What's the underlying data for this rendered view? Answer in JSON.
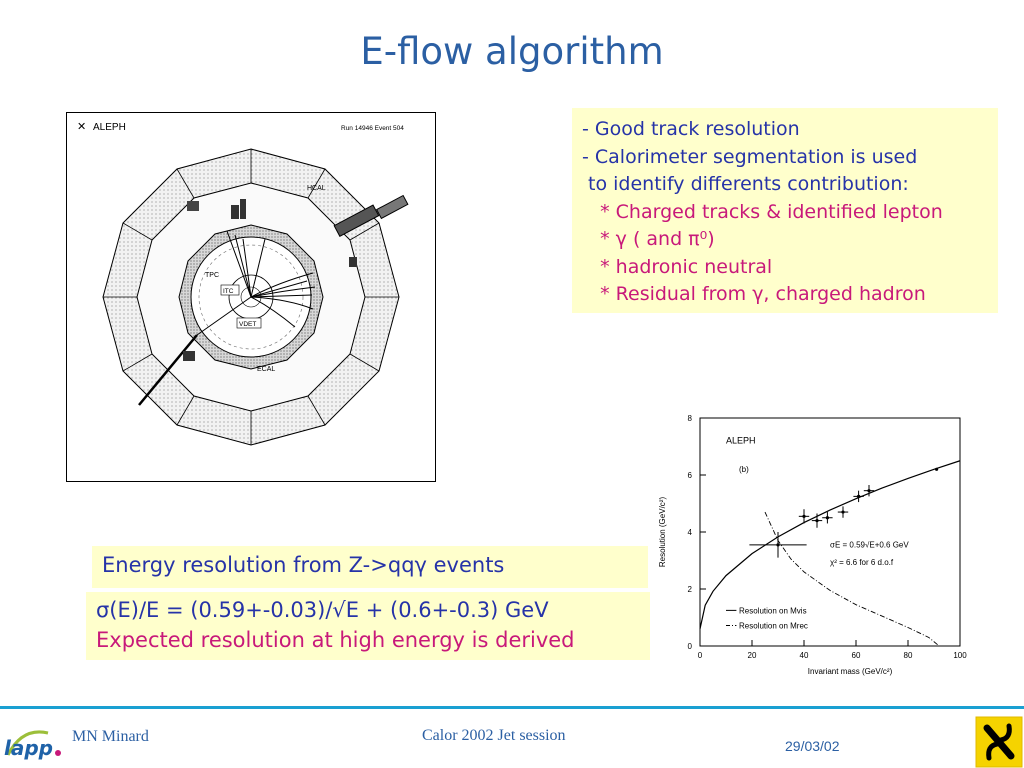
{
  "slide": {
    "title": "E-flow algorithm"
  },
  "detector": {
    "experiment": "ALEPH",
    "run_event": "Run 14946 Event 504",
    "labels": {
      "hcal": "HCAL",
      "tpc": "TPC",
      "itc": "ITC",
      "vdet": "VDET",
      "ecal": "ECAL"
    }
  },
  "bullets": [
    {
      "text": "- Good track resolution",
      "color": "blue"
    },
    {
      "text": "- Calorimeter segmentation is used",
      "color": "blue"
    },
    {
      "text": " to identify differents contribution:",
      "color": "blue"
    },
    {
      "text": "   * Charged tracks & identified lepton",
      "color": "red"
    },
    {
      "text": "   * γ ( and π⁰)",
      "color": "red"
    },
    {
      "text": "   * hadronic neutral",
      "color": "red"
    },
    {
      "text": "   * Residual from γ, charged hadron",
      "color": "red"
    }
  ],
  "energy_box": {
    "text": "Energy resolution from Z->qqγ events"
  },
  "formula_box": {
    "formula": "σ(E)/E = (0.59+-0.03)/√E + (0.6+-0.3) GeV",
    "note": "Expected resolution at high energy is derived"
  },
  "chart_data": {
    "type": "line",
    "title": "ALEPH",
    "panel_label": "(b)",
    "xlabel": "Invariant mass (GeV/c²)",
    "ylabel": "Resolution (GeV/c²)",
    "xlim": [
      0,
      100
    ],
    "ylim": [
      0,
      8
    ],
    "xticks": [
      0,
      20,
      40,
      60,
      80,
      100
    ],
    "yticks": [
      0,
      2,
      4,
      6,
      8
    ],
    "fit_text_1": "σE = 0.59√E+0.6 GeV",
    "fit_text_2": "χ² = 6.6 for 6 d.o.f",
    "legend": [
      {
        "label": "Resolution on Mvis",
        "style": "solid"
      },
      {
        "label": "Resolution on Mrec",
        "style": "dash-dot"
      }
    ],
    "points": [
      {
        "x": 30,
        "y": 3.55,
        "xerr": 11,
        "yerr": 0.45
      },
      {
        "x": 40,
        "y": 4.55,
        "xerr": 2,
        "yerr": 0.25
      },
      {
        "x": 45,
        "y": 4.4,
        "xerr": 2,
        "yerr": 0.25
      },
      {
        "x": 49,
        "y": 4.5,
        "xerr": 2,
        "yerr": 0.2
      },
      {
        "x": 55,
        "y": 4.7,
        "xerr": 2,
        "yerr": 0.2
      },
      {
        "x": 61,
        "y": 5.25,
        "xerr": 2,
        "yerr": 0.2
      },
      {
        "x": 65,
        "y": 5.45,
        "xerr": 2,
        "yerr": 0.2
      },
      {
        "x": 91,
        "y": 6.2,
        "xerr": 0,
        "yerr": 0
      }
    ],
    "solid_curve": {
      "x": [
        0,
        2,
        5,
        10,
        20,
        30,
        40,
        50,
        60,
        70,
        80,
        90,
        100
      ],
      "y": [
        0.6,
        1.43,
        1.92,
        2.47,
        3.24,
        3.83,
        4.33,
        4.77,
        5.17,
        5.54,
        5.88,
        6.2,
        6.5
      ]
    },
    "dashdot_curve": {
      "x": [
        25,
        30,
        35,
        40,
        50,
        60,
        70,
        80,
        88,
        92
      ],
      "y": [
        4.7,
        3.7,
        3.05,
        2.6,
        1.95,
        1.45,
        1.05,
        0.65,
        0.3,
        0.0
      ]
    }
  },
  "footer": {
    "author": "MN Minard",
    "session": "Calor 2002 Jet session",
    "date": "29/03/02",
    "lapp_logo": "lapp"
  },
  "colors": {
    "title": "#2b5fa3",
    "blue_text": "#2633a8",
    "red_text": "#c8197a",
    "box_bg": "#ffffcc",
    "footer_line": "#1aa0d2"
  }
}
